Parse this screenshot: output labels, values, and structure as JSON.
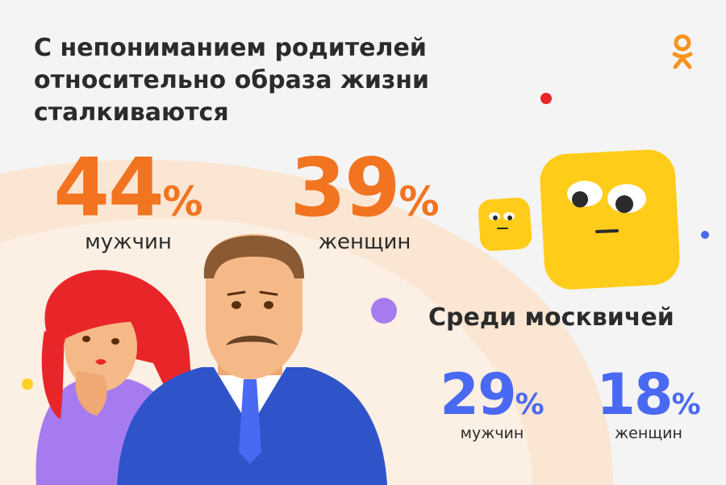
{
  "headline": {
    "line1": "С непониманием родителей",
    "line2": "относительно образа жизни",
    "line3": "сталкиваются"
  },
  "overall": {
    "men_value": "44",
    "men_label": "мужчин",
    "women_value": "39",
    "women_label": "женщин",
    "percent_sign": "%"
  },
  "moscow": {
    "title": "Среди москвичей",
    "men_value": "29",
    "men_label": "мужчин",
    "women_value": "18",
    "women_label": "женщин",
    "percent_sign": "%"
  },
  "colors": {
    "orange": "#f27420",
    "blue": "#4a69f2",
    "yellow": "#ffd21f",
    "brand_logo": "#f7931e"
  },
  "icons": [
    "ok-logo-icon",
    "yellow-square-mascot-icon",
    "small-yellow-square-mascot-icon"
  ]
}
